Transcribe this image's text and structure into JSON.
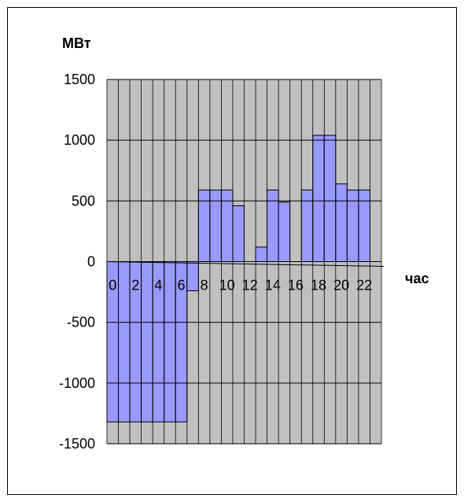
{
  "chart_data": {
    "type": "bar",
    "ylabel": "МВт",
    "xlabel": "час",
    "ylim": [
      -1500,
      1500
    ],
    "yticks": [
      1500,
      1000,
      500,
      0,
      -500,
      -1000,
      -1500
    ],
    "xtick_labels": [
      "0",
      "2",
      "4",
      "6",
      "8",
      "10",
      "12",
      "14",
      "16",
      "18",
      "20",
      "22"
    ],
    "categories": [
      0,
      1,
      2,
      3,
      4,
      5,
      6,
      7,
      8,
      9,
      10,
      11,
      12,
      13,
      14,
      15,
      16,
      17,
      18,
      19,
      20,
      21,
      22,
      23
    ],
    "values": [
      -1320,
      -1320,
      -1320,
      -1320,
      -1320,
      -1320,
      -1320,
      -240,
      590,
      590,
      590,
      460,
      0,
      120,
      590,
      490,
      0,
      590,
      1040,
      1040,
      640,
      590,
      590,
      0
    ],
    "grid": true,
    "legend": "none",
    "colors": {
      "plot_background": "#c0c0c0",
      "bar_fill": "#9999ff",
      "bar_stroke": "#000000",
      "grid": "#000000"
    }
  }
}
